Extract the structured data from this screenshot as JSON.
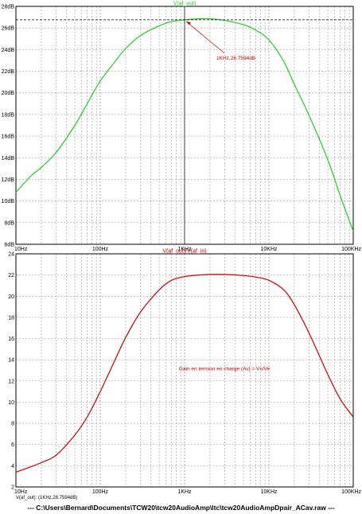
{
  "chart_data": [
    {
      "type": "line",
      "title": "V(af_out)",
      "xscale": "log",
      "xlim": [
        10,
        100000
      ],
      "ylim": [
        6,
        28
      ],
      "y_unit": "dB",
      "x_ticks": [
        "10Hz",
        "100Hz",
        "1KHz",
        "10KHz",
        "100KHz"
      ],
      "y_ticks": [
        "6dB",
        "8dB",
        "10dB",
        "12dB",
        "14dB",
        "16dB",
        "18dB",
        "20dB",
        "22dB",
        "24dB",
        "26dB",
        "28dB"
      ],
      "grid": true,
      "series": [
        {
          "name": "V(af_out)",
          "color": "#22cc22",
          "x": [
            10,
            15,
            20,
            30,
            50,
            70,
            100,
            150,
            200,
            300,
            500,
            700,
            1000,
            1500,
            2000,
            3000,
            5000,
            7000,
            10000,
            15000,
            20000,
            30000,
            50000,
            70000,
            100000
          ],
          "y": [
            10.8,
            12.3,
            13.1,
            14.5,
            17.0,
            19.0,
            21.1,
            22.9,
            24.1,
            25.3,
            26.2,
            26.6,
            26.76,
            26.85,
            26.85,
            26.7,
            26.3,
            25.8,
            24.9,
            22.9,
            20.8,
            17.9,
            13.8,
            10.5,
            7.2
          ]
        }
      ],
      "annotations": [
        {
          "text": "1KHz,26.7594dB",
          "x": 1000,
          "y": 26.7594
        }
      ]
    },
    {
      "type": "line",
      "title": "V(af_out)/V(af_in)",
      "xscale": "log",
      "xlim": [
        10,
        100000
      ],
      "ylim": [
        2,
        24
      ],
      "x_ticks": [
        "10Hz",
        "100Hz",
        "1KHz",
        "10KHz",
        "100KHz"
      ],
      "y_ticks": [
        "2",
        "4",
        "6",
        "8",
        "10",
        "12",
        "14",
        "16",
        "18",
        "20",
        "22",
        "24"
      ],
      "grid": true,
      "series": [
        {
          "name": "V(af_out)/V(af_in)",
          "color": "#cc0000",
          "x": [
            10,
            15,
            20,
            30,
            50,
            70,
            100,
            150,
            200,
            300,
            500,
            700,
            1000,
            1500,
            2000,
            3000,
            5000,
            7000,
            10000,
            15000,
            20000,
            30000,
            50000,
            70000,
            100000
          ],
          "y": [
            3.4,
            3.9,
            4.3,
            5.0,
            6.9,
            8.6,
            11.0,
            14.0,
            16.1,
            18.5,
            20.6,
            21.5,
            21.85,
            22.0,
            22.05,
            22.05,
            21.95,
            21.8,
            21.5,
            20.6,
            19.2,
            16.5,
            12.6,
            10.3,
            8.6
          ]
        }
      ],
      "annotations": [
        {
          "text": "Gain en tension en charge (Av) = Vs/Ve"
        }
      ]
    }
  ],
  "status": {
    "cursor": "V(af_out):  (1KHz,26.7594dB)"
  },
  "footer": {
    "path": "---  C:\\Users\\Bernard\\Documents\\TCW20\\tcw20AudioAmp\\ltc\\tcw20AudioAmpDpair_ACav.raw  ---"
  }
}
